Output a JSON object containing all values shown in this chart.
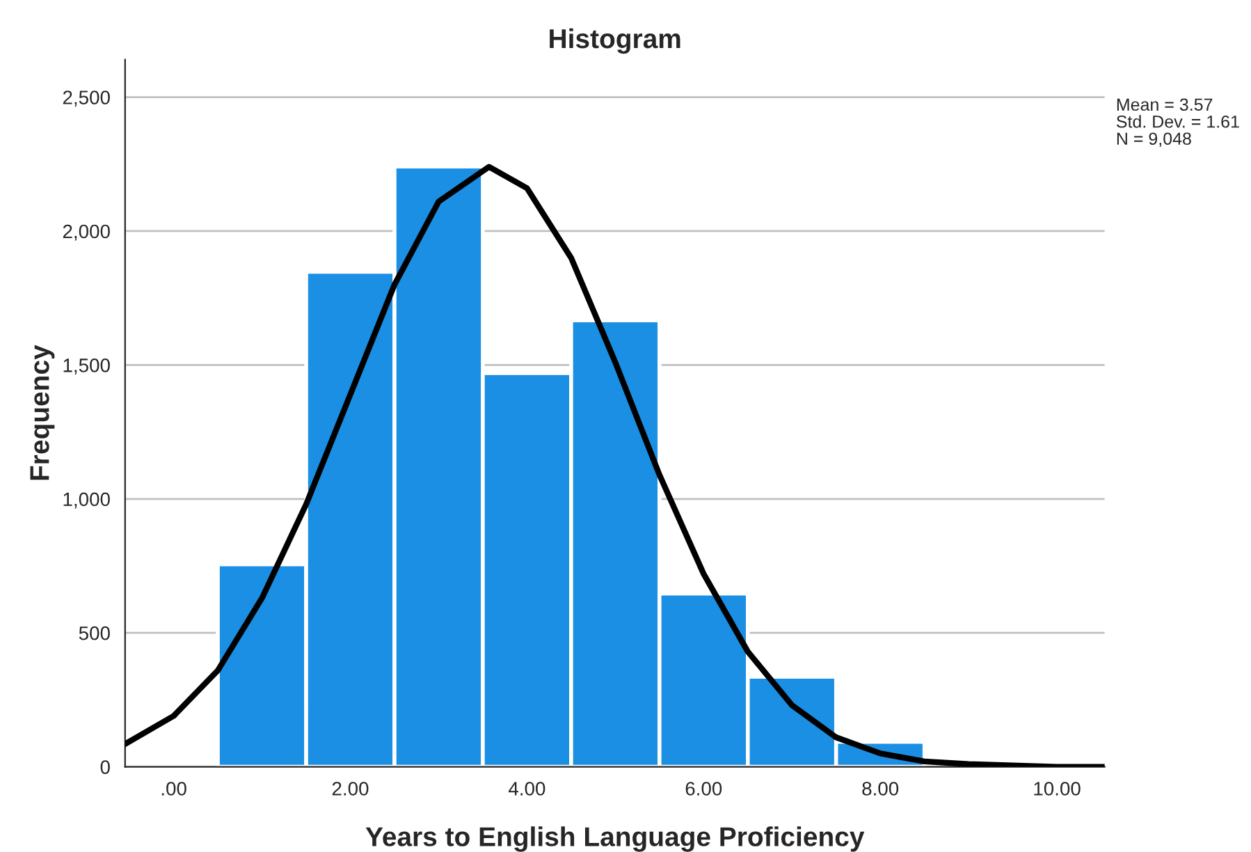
{
  "chart_data": {
    "type": "histogram",
    "title": "Histogram",
    "xlabel": "Years to English Language Proficiency",
    "ylabel": "Frequency",
    "bins": [
      0.5,
      1.5,
      2.5,
      3.5,
      4.5,
      5.5,
      6.5,
      7.5,
      8.5
    ],
    "values": [
      756,
      1848,
      2241,
      1470,
      1667,
      647,
      336,
      93
    ],
    "color": "#1a8fe3",
    "series": [
      {
        "type": "line",
        "color": "#000000",
        "x": [
          -0.55,
          0,
          0.5,
          1,
          1.5,
          2,
          2.5,
          3,
          3.57,
          4,
          4.5,
          5,
          5.5,
          6,
          6.5,
          7,
          7.5,
          8,
          8.5,
          9,
          10,
          10.54
        ],
        "values": [
          85,
          190,
          360,
          630,
          980,
          1390,
          1800,
          2110,
          2240,
          2160,
          1900,
          1510,
          1090,
          720,
          430,
          230,
          110,
          50,
          20,
          10,
          0,
          0
        ]
      }
    ],
    "xlim": [
      -0.55,
      10.54
    ],
    "ylim": [
      0,
      2640
    ],
    "xticks": [
      {
        "value": 0,
        "label": ".00"
      },
      {
        "value": 2,
        "label": "2.00"
      },
      {
        "value": 4,
        "label": "4.00"
      },
      {
        "value": 6,
        "label": "6.00"
      },
      {
        "value": 8,
        "label": "8.00"
      },
      {
        "value": 10,
        "label": "10.00"
      }
    ],
    "yticks": [
      0,
      {
        "value": 500,
        "label": "500"
      },
      {
        "value": 1000,
        "label": "1,000"
      },
      {
        "value": 1500,
        "label": "1,500"
      },
      {
        "value": 2000,
        "label": "2,000"
      },
      {
        "value": 2500,
        "label": "2,500"
      }
    ],
    "grid": "y",
    "annotations": [
      "Mean = 3.57",
      "Std. Dev. = 1.61",
      "N = 9,048"
    ]
  }
}
